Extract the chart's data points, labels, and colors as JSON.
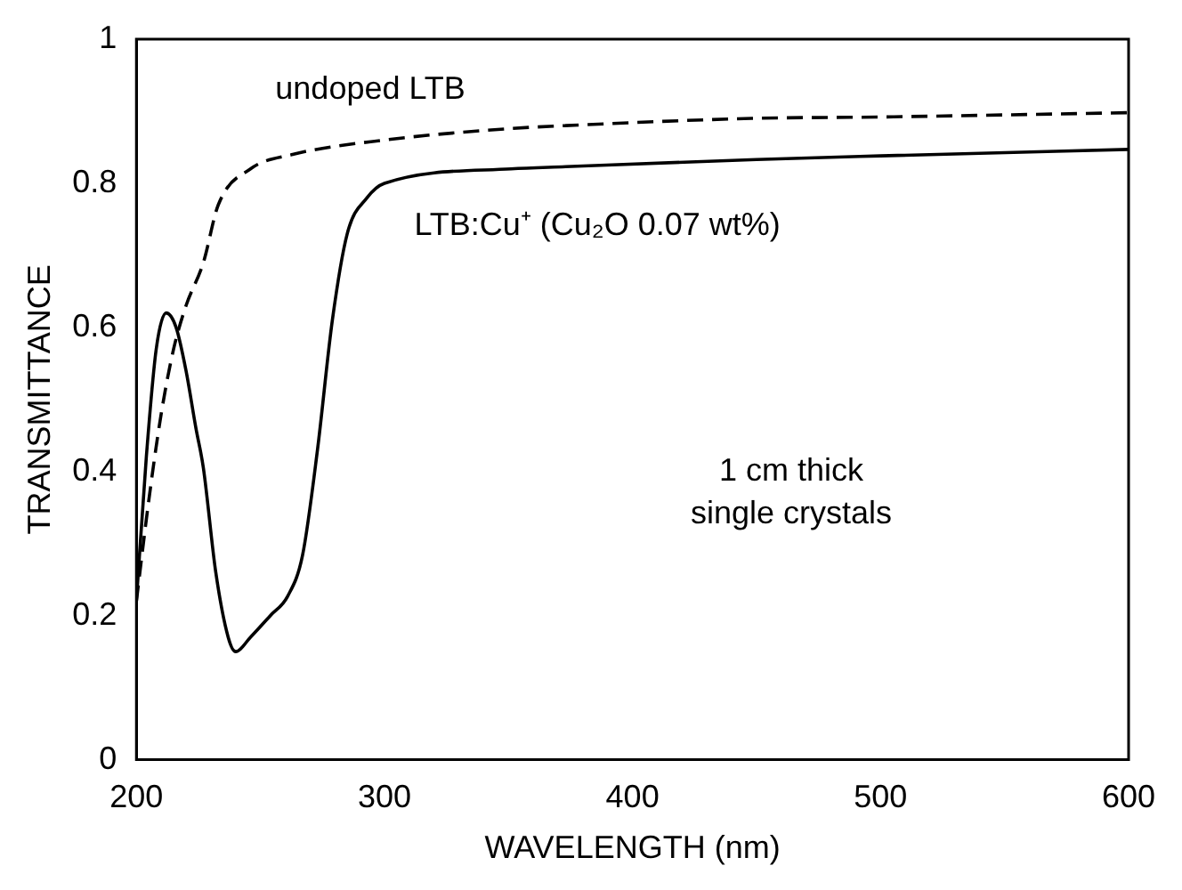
{
  "chart_data": {
    "type": "line",
    "xlabel": "WAVELENGTH (nm)",
    "ylabel": "TRANSMITTANCE",
    "xlim": [
      200,
      600
    ],
    "xticks": [
      200,
      300,
      400,
      500,
      600
    ],
    "ylim": [
      0,
      1
    ],
    "yticks": [
      0,
      0.2,
      0.4,
      0.6,
      0.8,
      1
    ],
    "grid": false,
    "legend": false,
    "marker": "none",
    "series": [
      {
        "name": "undoped LTB",
        "color": "#000000",
        "line_style": "dashed",
        "x": [
          200,
          205,
          210,
          215,
          220,
          227,
          233,
          246,
          263,
          300,
          351,
          373,
          448,
          500,
          600
        ],
        "values": [
          0.22,
          0.36,
          0.48,
          0.57,
          0.63,
          0.69,
          0.77,
          0.82,
          0.84,
          0.86,
          0.876,
          0.88,
          0.89,
          0.892,
          0.898
        ]
      },
      {
        "name": "LTB:Cu⁺ (Cu₂O 0.07 wt%)",
        "color": "#000000",
        "line_style": "solid",
        "x": [
          200,
          204,
          208,
          212,
          216,
          220,
          224,
          227,
          232,
          237,
          240,
          246,
          254,
          261,
          267,
          273,
          279,
          285,
          293,
          300,
          351,
          373,
          450,
          500,
          600
        ],
        "values": [
          0.22,
          0.42,
          0.57,
          0.62,
          0.6,
          0.54,
          0.46,
          0.405,
          0.26,
          0.17,
          0.15,
          0.17,
          0.2,
          0.227,
          0.284,
          0.43,
          0.61,
          0.73,
          0.78,
          0.8,
          0.82,
          0.823,
          0.833,
          0.838,
          0.847
        ]
      }
    ],
    "annotations": [
      "1 cm thick single crystals"
    ]
  }
}
